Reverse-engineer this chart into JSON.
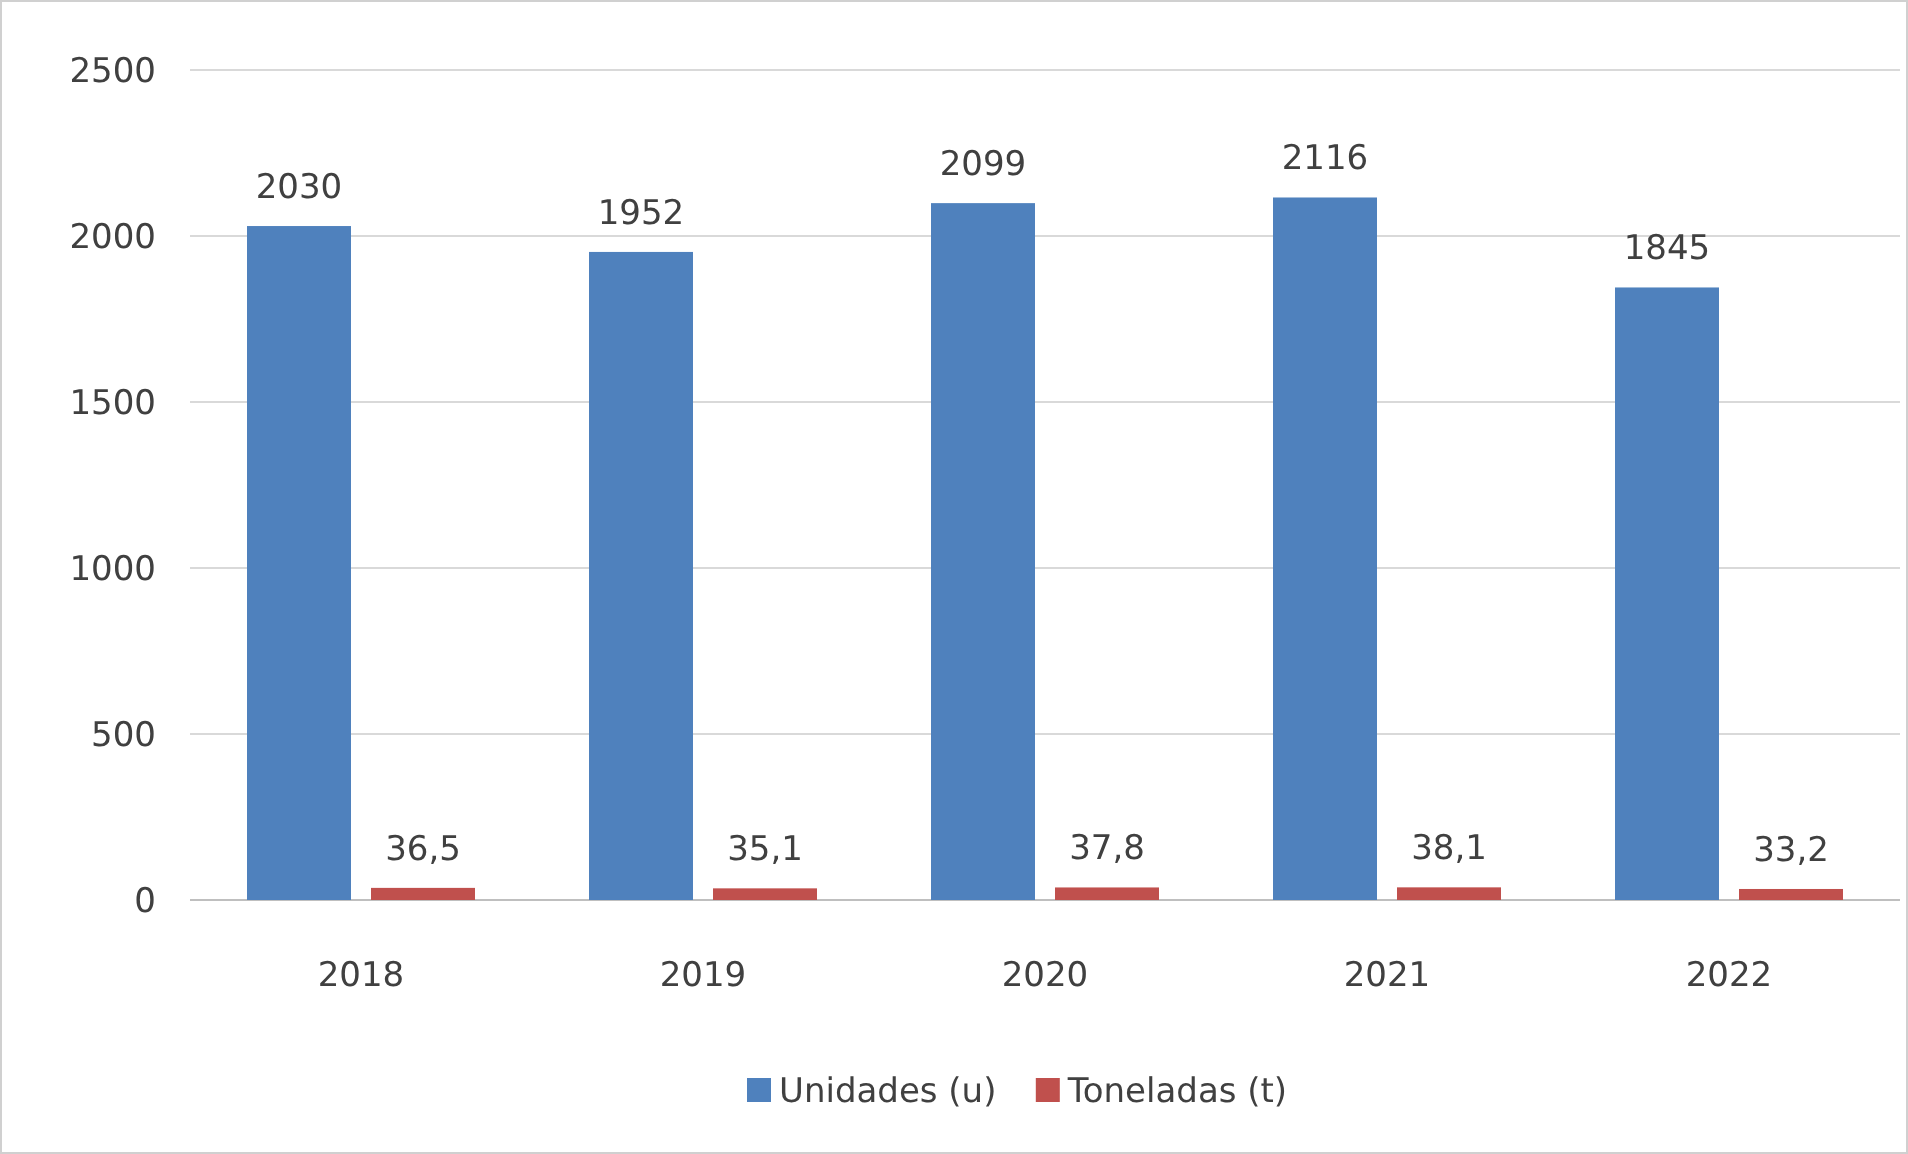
{
  "chart_data": {
    "type": "bar",
    "categories": [
      "2018",
      "2019",
      "2020",
      "2021",
      "2022"
    ],
    "series": [
      {
        "name": "Unidades (u)",
        "color": "#4f81bd",
        "values": [
          2030,
          1952,
          2099,
          2116,
          1845
        ],
        "value_labels": [
          "2030",
          "1952",
          "2099",
          "2116",
          "1845"
        ]
      },
      {
        "name": "Toneladas (t)",
        "color": "#c0504d",
        "values": [
          36.5,
          35.1,
          37.8,
          38.1,
          33.2
        ],
        "value_labels": [
          "36,5",
          "35,1",
          "37,8",
          "38,1",
          "33,2"
        ]
      }
    ],
    "ylim": [
      0,
      2500
    ],
    "yticks": [
      0,
      500,
      1000,
      1500,
      2000,
      2500
    ],
    "grid": "y",
    "legend": "bottom"
  }
}
